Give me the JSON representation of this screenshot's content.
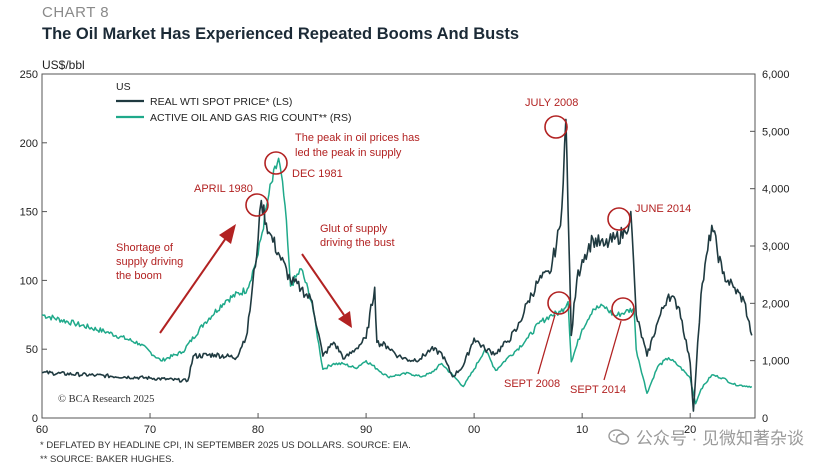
{
  "header": {
    "chart_label": "CHART 8",
    "title": "The Oil Market Has Experienced Repeated Booms And Busts",
    "unit": "US$/bbl"
  },
  "footnotes": {
    "line1": "*  DEFLATED BY HEADLINE CPI, IN SEPTEMBER 2025 US DOLLARS. SOURCE: EIA.",
    "line2": "** SOURCE: BAKER HUGHES."
  },
  "watermark": "公众号 · 见微知著杂谈",
  "colors": {
    "wti": "#1f3a40",
    "rigs": "#1fa98a",
    "annotation": "#b22222",
    "axis": "#555555"
  },
  "chart_data": {
    "type": "line",
    "title": "The Oil Market Has Experienced Repeated Booms And Busts",
    "region_label": "US",
    "x_tick_labels": [
      "60",
      "70",
      "80",
      "90",
      "00",
      "10",
      "20"
    ],
    "x_tick_years": [
      1960,
      1970,
      1980,
      1990,
      2000,
      2010,
      2020
    ],
    "x_range": [
      1960,
      2026
    ],
    "left_axis": {
      "label": "US$/bbl",
      "range": [
        0,
        250
      ],
      "ticks": [
        0,
        50,
        100,
        150,
        200,
        250
      ]
    },
    "right_axis": {
      "range": [
        0,
        6000
      ],
      "ticks": [
        0,
        1000,
        2000,
        3000,
        4000,
        5000,
        6000
      ],
      "tick_labels": [
        "0",
        "1,000",
        "2,000",
        "3,000",
        "4,000",
        "5,000",
        "6,000"
      ]
    },
    "series": [
      {
        "name": "REAL WTI SPOT PRICE* (LS)",
        "axis": "left",
        "points": [
          [
            1960,
            33
          ],
          [
            1965,
            31
          ],
          [
            1970,
            29
          ],
          [
            1973.5,
            27
          ],
          [
            1974,
            45
          ],
          [
            1976,
            46
          ],
          [
            1978,
            44
          ],
          [
            1979,
            62
          ],
          [
            1980,
            130
          ],
          [
            1980.3,
            158
          ],
          [
            1981,
            135
          ],
          [
            1982,
            118
          ],
          [
            1983,
            100
          ],
          [
            1984,
            94
          ],
          [
            1985,
            85
          ],
          [
            1986,
            45
          ],
          [
            1987,
            55
          ],
          [
            1988,
            43
          ],
          [
            1989,
            50
          ],
          [
            1990,
            58
          ],
          [
            1990.8,
            95
          ],
          [
            1991,
            55
          ],
          [
            1992,
            52
          ],
          [
            1993,
            45
          ],
          [
            1994,
            42
          ],
          [
            1995,
            43
          ],
          [
            1996,
            50
          ],
          [
            1997,
            47
          ],
          [
            1998,
            30
          ],
          [
            1999,
            38
          ],
          [
            2000,
            58
          ],
          [
            2001,
            50
          ],
          [
            2002,
            47
          ],
          [
            2003,
            55
          ],
          [
            2004,
            65
          ],
          [
            2005,
            85
          ],
          [
            2006,
            100
          ],
          [
            2007,
            105
          ],
          [
            2008,
            140
          ],
          [
            2008.5,
            217
          ],
          [
            2008.7,
            150
          ],
          [
            2009,
            60
          ],
          [
            2009.5,
            100
          ],
          [
            2010,
            115
          ],
          [
            2011,
            130
          ],
          [
            2012,
            125
          ],
          [
            2013,
            130
          ],
          [
            2014,
            135
          ],
          [
            2014.5,
            150
          ],
          [
            2015,
            75
          ],
          [
            2016,
            45
          ],
          [
            2017,
            70
          ],
          [
            2018,
            90
          ],
          [
            2019,
            80
          ],
          [
            2020,
            40
          ],
          [
            2020.3,
            5
          ],
          [
            2020.7,
            55
          ],
          [
            2021,
            90
          ],
          [
            2022,
            140
          ],
          [
            2023,
            105
          ],
          [
            2024,
            95
          ],
          [
            2025,
            85
          ],
          [
            2025.7,
            60
          ]
        ]
      },
      {
        "name": "ACTIVE OIL AND GAS RIG COUNT** (RS)",
        "axis": "right",
        "points": [
          [
            1960,
            1800
          ],
          [
            1963,
            1650
          ],
          [
            1966,
            1500
          ],
          [
            1969,
            1300
          ],
          [
            1971,
            1000
          ],
          [
            1973,
            1150
          ],
          [
            1975,
            1650
          ],
          [
            1977,
            2050
          ],
          [
            1979,
            2250
          ],
          [
            1980,
            2850
          ],
          [
            1981,
            3900
          ],
          [
            1981.9,
            4530
          ],
          [
            1982.5,
            3700
          ],
          [
            1983,
            2300
          ],
          [
            1984,
            2600
          ],
          [
            1985,
            2000
          ],
          [
            1986,
            850
          ],
          [
            1987,
            950
          ],
          [
            1988,
            940
          ],
          [
            1989,
            870
          ],
          [
            1990,
            1000
          ],
          [
            1991,
            860
          ],
          [
            1992,
            720
          ],
          [
            1993,
            750
          ],
          [
            1994,
            780
          ],
          [
            1995,
            720
          ],
          [
            1996,
            780
          ],
          [
            1997,
            950
          ],
          [
            1998,
            750
          ],
          [
            1999,
            550
          ],
          [
            2000,
            850
          ],
          [
            2001,
            1200
          ],
          [
            2002,
            830
          ],
          [
            2003,
            1030
          ],
          [
            2004,
            1200
          ],
          [
            2005,
            1400
          ],
          [
            2006,
            1650
          ],
          [
            2007,
            1780
          ],
          [
            2008,
            1850
          ],
          [
            2008.7,
            2030
          ],
          [
            2009,
            980
          ],
          [
            2010,
            1550
          ],
          [
            2011,
            1900
          ],
          [
            2012,
            1950
          ],
          [
            2013,
            1780
          ],
          [
            2014,
            1850
          ],
          [
            2014.8,
            1910
          ],
          [
            2015,
            1200
          ],
          [
            2016,
            430
          ],
          [
            2017,
            900
          ],
          [
            2018,
            1050
          ],
          [
            2019,
            900
          ],
          [
            2020,
            700
          ],
          [
            2020.5,
            250
          ],
          [
            2021,
            500
          ],
          [
            2022,
            750
          ],
          [
            2023,
            700
          ],
          [
            2024,
            590
          ],
          [
            2025,
            560
          ],
          [
            2025.7,
            550
          ]
        ]
      }
    ],
    "annotations": [
      "APRIL 1980",
      "DEC 1981",
      "The peak in oil prices has",
      "led the peak in supply",
      "Shortage of",
      "supply driving",
      "the boom",
      "Glut of supply",
      "driving the bust",
      "JULY 2008",
      "JUNE 2014",
      "SEPT 2008",
      "SEPT 2014"
    ],
    "credit": "© BCA Research 2025"
  }
}
